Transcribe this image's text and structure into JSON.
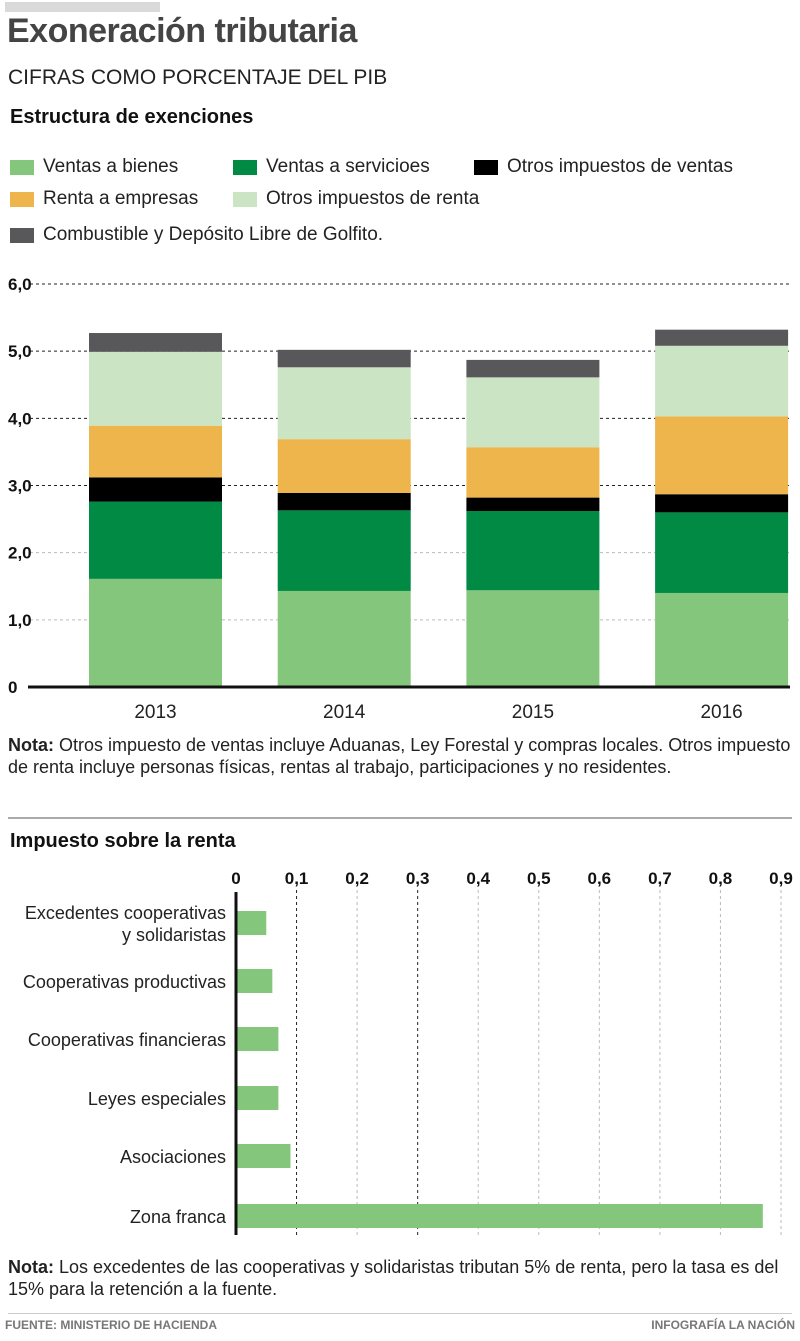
{
  "header": {
    "title": "Exoneración tributaria",
    "subtitle": "CIFRAS COMO PORCENTAJE DEL PIB"
  },
  "section1": {
    "heading": "Estructura de exenciones",
    "note_label": "Nota:",
    "note_text": " Otros impuesto de ventas incluye Aduanas, Ley Forestal y compras locales. Otros impuesto de renta incluye personas físicas, rentas al trabajo, participaciones y no residentes."
  },
  "section2": {
    "heading": "Impuesto sobre la renta",
    "note_label": "Nota:",
    "note_text": " Los excedentes de las cooperativas y solidaristas tributan 5% de renta, pero la tasa es del 15% para la retención a la fuente."
  },
  "footer": {
    "source": "FUENTE: MINISTERIO DE HACIENDA",
    "credit": "INFOGRAFÍA LA NACIÓN"
  },
  "chart_data": [
    {
      "type": "bar",
      "stacked": true,
      "title": "Estructura de exenciones",
      "xlabel": "",
      "ylabel": "% del PIB",
      "categories": [
        "2013",
        "2014",
        "2015",
        "2016"
      ],
      "ylim": [
        0,
        6
      ],
      "yticks": [
        0,
        1,
        2,
        3,
        4,
        5,
        6
      ],
      "ytick_labels": [
        "0",
        "1,0",
        "2,0",
        "3,0",
        "4,0",
        "5,0",
        "6,0"
      ],
      "grid": true,
      "legend_position": "top",
      "series": [
        {
          "name": "Ventas a bienes",
          "color": "#84c77c",
          "values": [
            1.61,
            1.43,
            1.44,
            1.4
          ]
        },
        {
          "name": "Ventas a servicioes",
          "color": "#008a44",
          "values": [
            1.15,
            1.2,
            1.18,
            1.2
          ]
        },
        {
          "name": "Otros impuestos de ventas",
          "color": "#000000",
          "values": [
            0.36,
            0.26,
            0.2,
            0.27
          ]
        },
        {
          "name": "Renta a empresas",
          "color": "#edb54b",
          "values": [
            0.77,
            0.8,
            0.75,
            1.16
          ]
        },
        {
          "name": "Otros impuestos de renta",
          "color": "#cae4c4",
          "values": [
            1.1,
            1.07,
            1.04,
            1.05
          ]
        },
        {
          "name": "Combustible y Depósito Libre de Golfito.",
          "color": "#58585a",
          "values": [
            0.28,
            0.26,
            0.26,
            0.24
          ]
        }
      ]
    },
    {
      "type": "bar",
      "orientation": "horizontal",
      "title": "Impuesto sobre la renta",
      "xlabel": "",
      "ylabel": "",
      "categories": [
        "Excedentes cooperativas y solidaristas",
        "Cooperativas productivas",
        "Cooperativas financieras",
        "Leyes especiales",
        "Asociaciones",
        "Zona franca"
      ],
      "category_lines": [
        [
          "Excedentes cooperativas",
          "y solidaristas"
        ],
        [
          "Cooperativas productivas"
        ],
        [
          "Cooperativas financieras"
        ],
        [
          "Leyes especiales"
        ],
        [
          "Asociaciones"
        ],
        [
          "Zona franca"
        ]
      ],
      "values": [
        0.05,
        0.06,
        0.07,
        0.07,
        0.09,
        0.87
      ],
      "color": "#84c77c",
      "xlim": [
        0,
        0.9
      ],
      "xticks": [
        0,
        0.1,
        0.2,
        0.3,
        0.4,
        0.5,
        0.6,
        0.7,
        0.8,
        0.9
      ],
      "xtick_labels": [
        "0",
        "0,1",
        "0,2",
        "0,3",
        "0,4",
        "0,5",
        "0,6",
        "0,7",
        "0,8",
        "0,9"
      ],
      "xaxis_position": "top",
      "grid": true
    }
  ]
}
